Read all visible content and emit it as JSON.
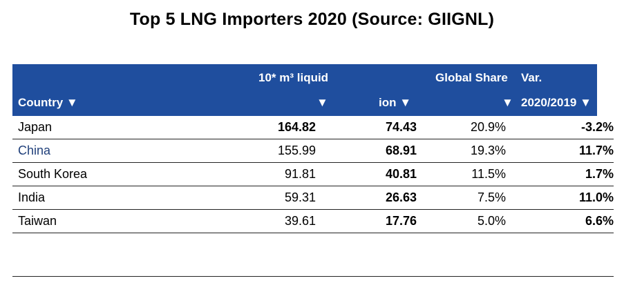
{
  "title": "Top 5 LNG Importers 2020 (Source: GIIGNL)",
  "table": {
    "headers": {
      "country": "Country ▼",
      "volume_line1": "10* m³ liquid",
      "volume_line2": "▼",
      "bcm": "ion ▼",
      "share_line1": "Global Share",
      "share_line2": "▼",
      "var_line1": "Var.",
      "var_line2": "2020/2019 ▼"
    },
    "rows": [
      {
        "country": "Japan",
        "volume": "164.82",
        "bcm": "74.43",
        "share": "20.9%",
        "var": "-3.2%"
      },
      {
        "country": "China",
        "volume": "155.99",
        "bcm": "68.91",
        "share": "19.3%",
        "var": "11.7%"
      },
      {
        "country": "South Korea",
        "volume": "91.81",
        "bcm": "40.81",
        "share": "11.5%",
        "var": "1.7%"
      },
      {
        "country": "India",
        "volume": "59.31",
        "bcm": "26.63",
        "share": "7.5%",
        "var": "11.0%"
      },
      {
        "country": "Taiwan",
        "volume": "39.61",
        "bcm": "17.76",
        "share": "5.0%",
        "var": "6.6%"
      }
    ]
  },
  "colors": {
    "header_bg": "#1f4e9e",
    "header_text": "#ffffff",
    "china_text": "#1f3f7a"
  }
}
